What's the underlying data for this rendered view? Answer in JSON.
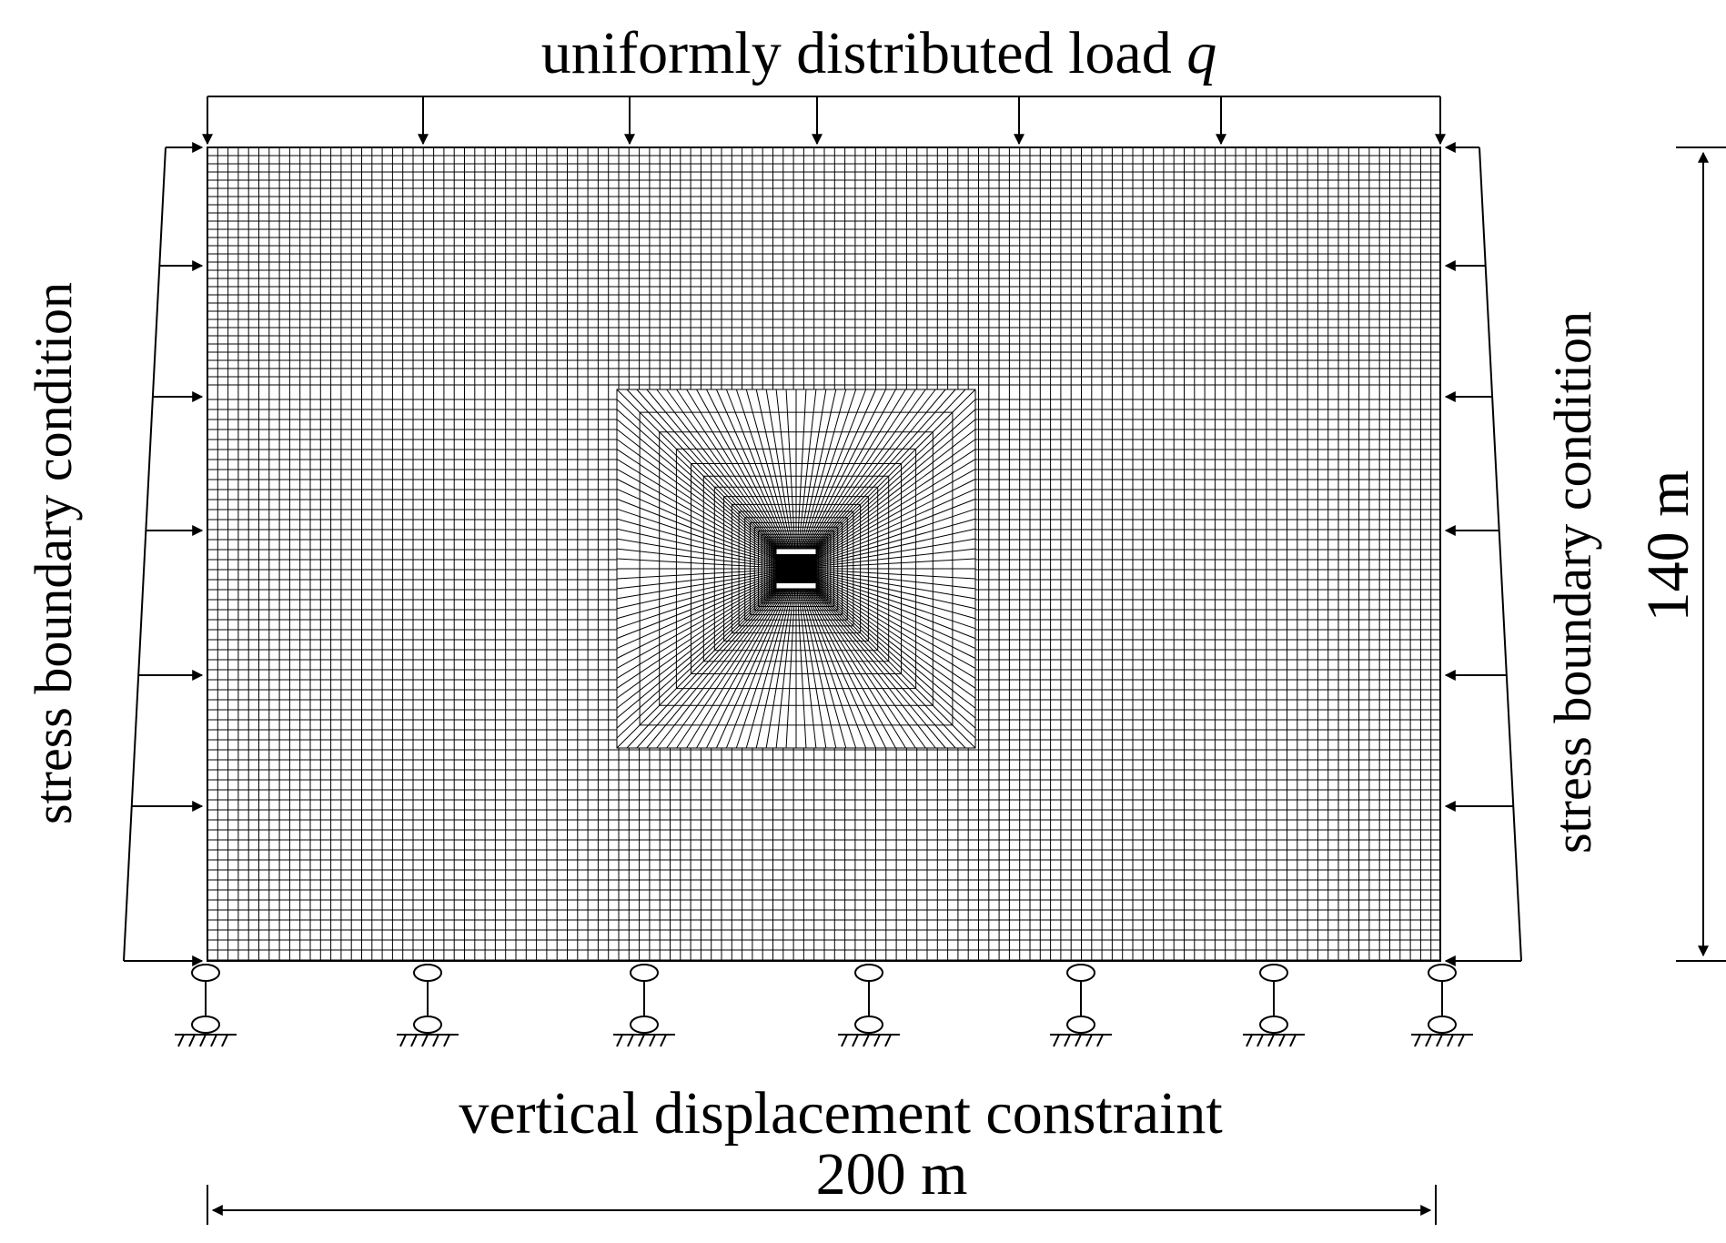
{
  "labels": {
    "top_load_text": "uniformly distributed load ",
    "top_load_symbol": "q",
    "left_side": "stress boundary condition",
    "right_side": "stress boundary condition",
    "bottom_constraint": "vertical displacement constraint",
    "width_dimension": "200 m",
    "height_dimension": "140 m"
  },
  "colors": {
    "line": "#000000",
    "background": "#ffffff"
  }
}
